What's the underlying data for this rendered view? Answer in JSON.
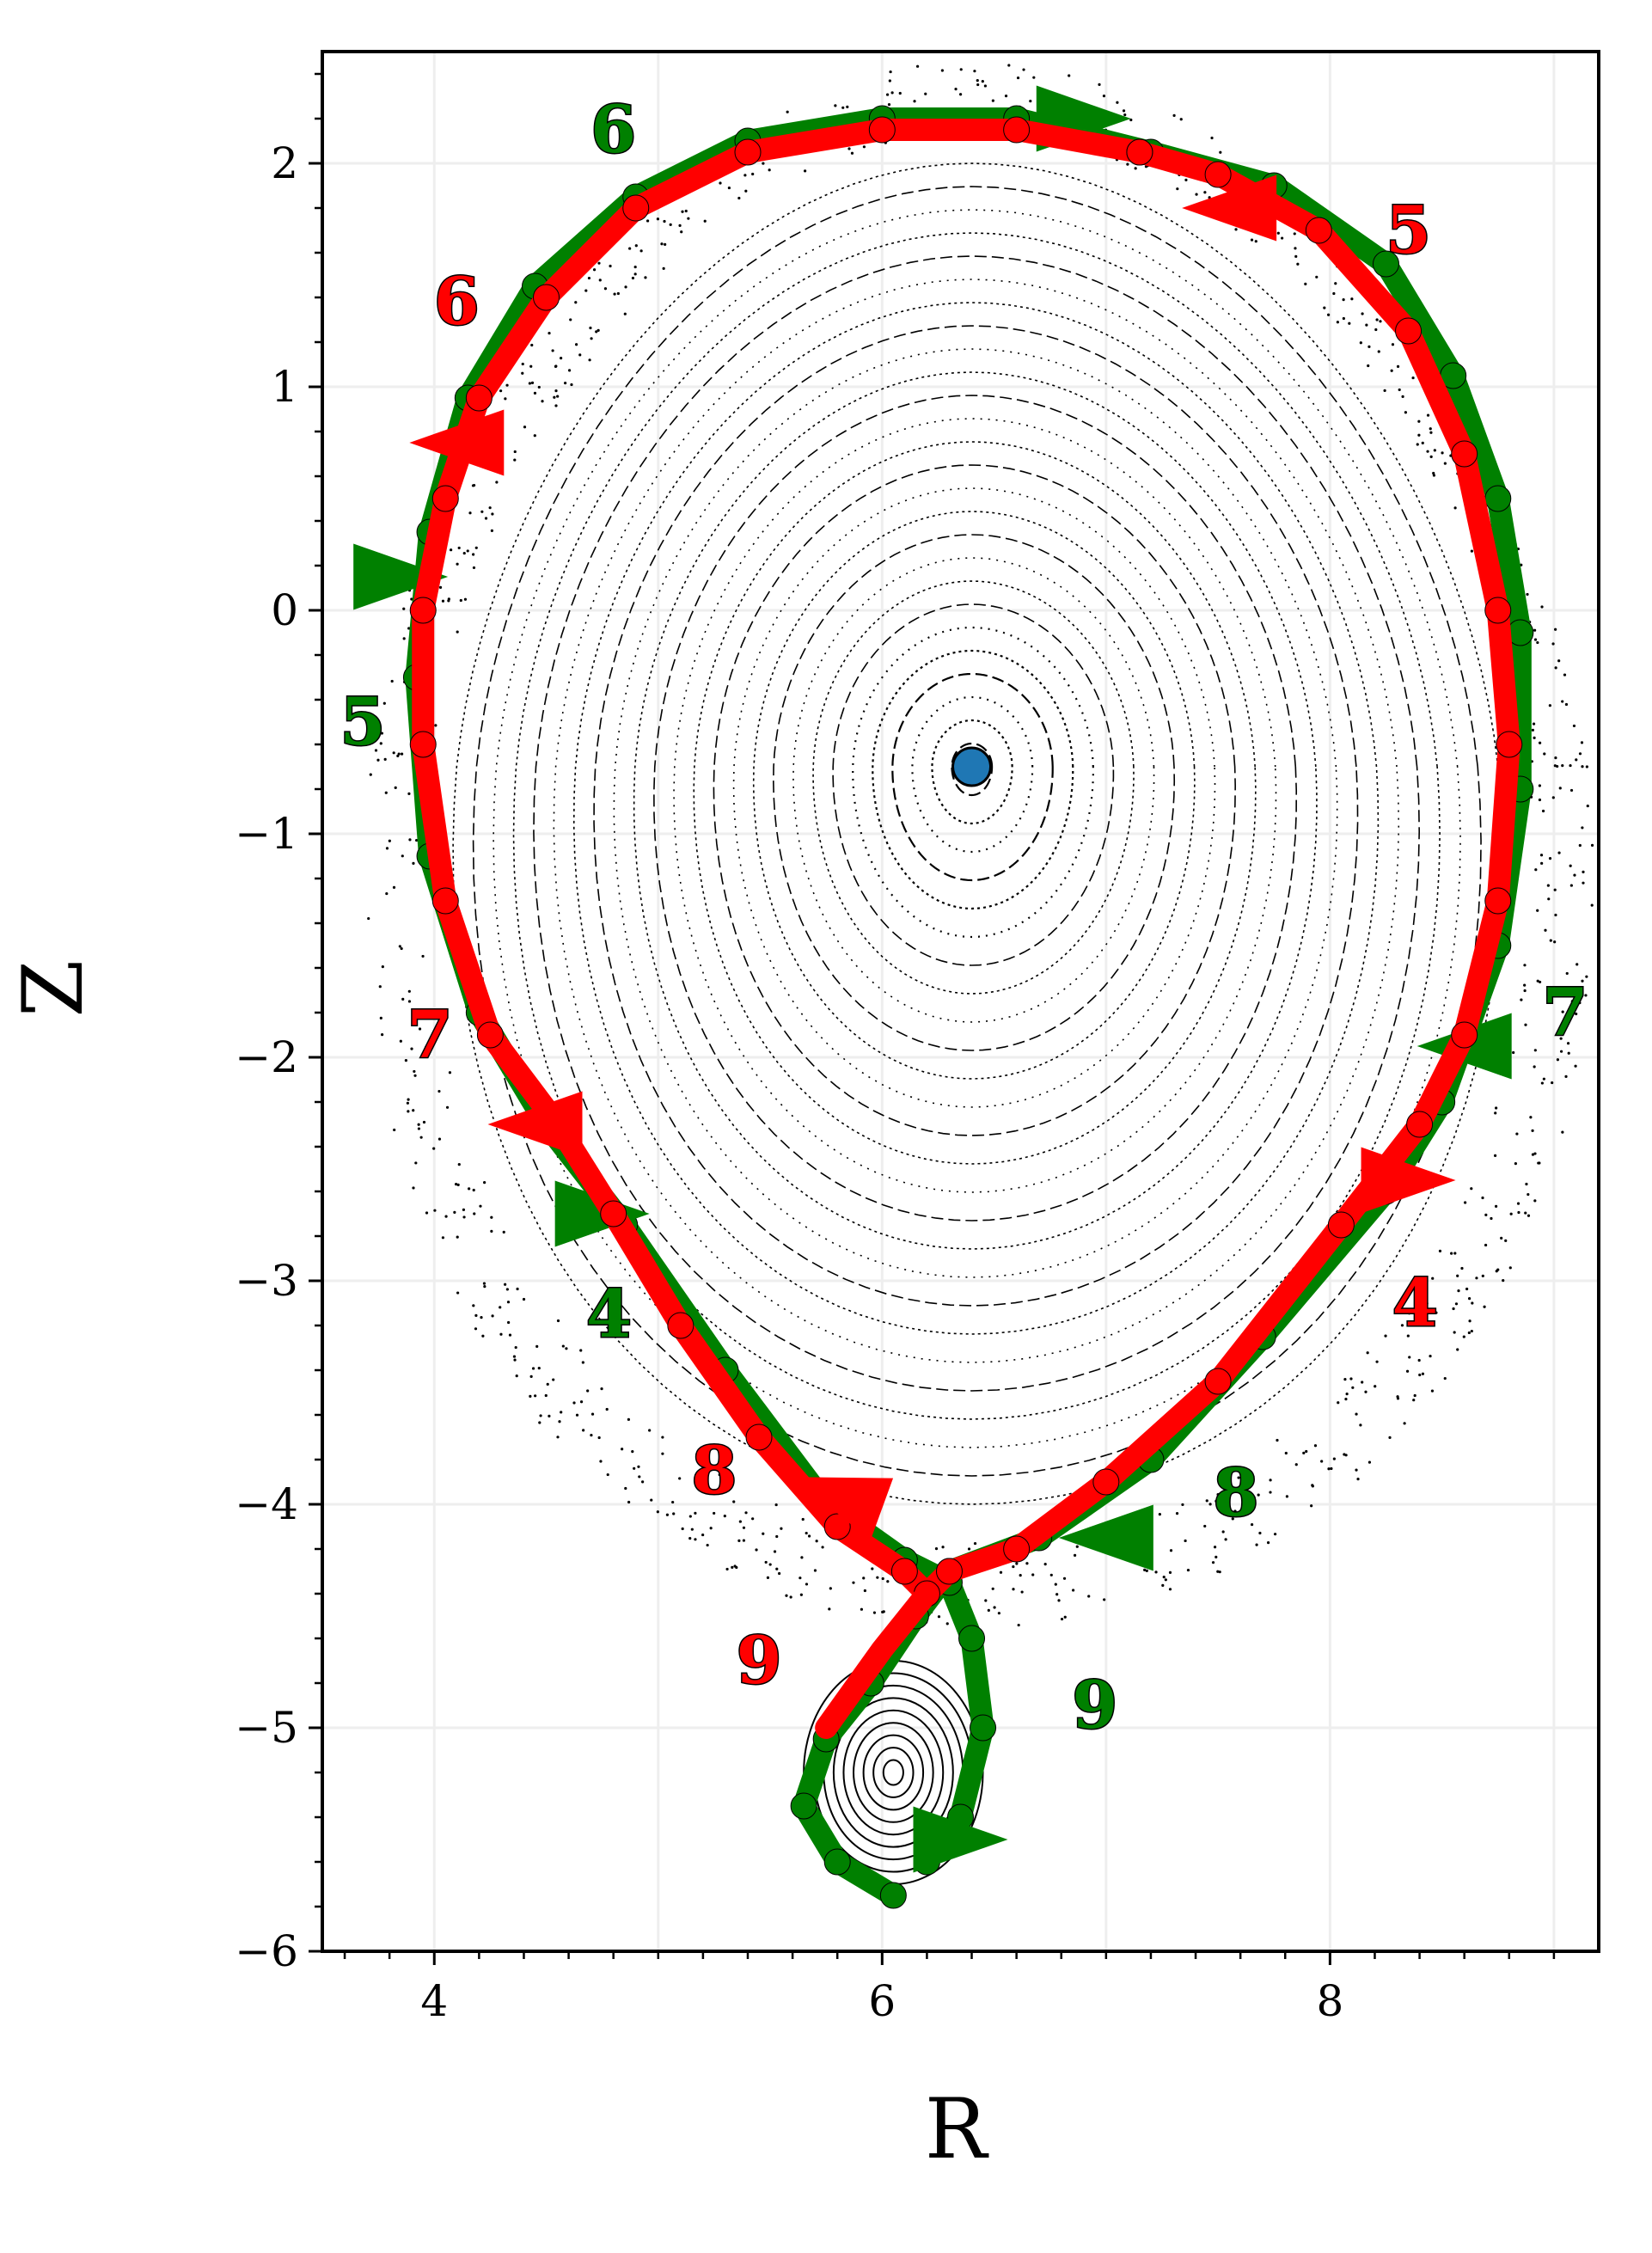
{
  "chart_data": {
    "type": "scatter",
    "title": "",
    "xlabel": "R",
    "ylabel": "Z",
    "xlim": [
      3.5,
      9.2
    ],
    "ylim": [
      -6,
      2.5
    ],
    "xticks": [
      4,
      6,
      8
    ],
    "yticks": [
      2,
      1,
      0,
      -1,
      -2,
      -3,
      -4,
      -5,
      -6
    ],
    "grid": true,
    "colors": {
      "red_path": "#ff0000",
      "green_path": "#008000",
      "magnetic_axis": "#1f77b4",
      "poincare": "#000000"
    },
    "magnetic_axis": {
      "R": 6.4,
      "Z": -0.7
    },
    "x_point": {
      "R": 6.2,
      "Z": -4.4
    },
    "red_path": {
      "points": [
        [
          7.15,
          2.05
        ],
        [
          6.6,
          2.15
        ],
        [
          6.0,
          2.15
        ],
        [
          5.4,
          2.05
        ],
        [
          4.9,
          1.8
        ],
        [
          4.5,
          1.4
        ],
        [
          4.2,
          0.95
        ],
        [
          4.05,
          0.5
        ],
        [
          3.95,
          0.0
        ],
        [
          3.95,
          -0.6
        ],
        [
          4.05,
          -1.3
        ],
        [
          4.25,
          -1.9
        ],
        [
          4.55,
          -2.3
        ],
        [
          4.8,
          -2.7
        ],
        [
          5.1,
          -3.2
        ],
        [
          5.45,
          -3.7
        ],
        [
          5.8,
          -4.1
        ],
        [
          6.1,
          -4.3
        ],
        [
          6.2,
          -4.4
        ],
        [
          6.3,
          -4.3
        ],
        [
          6.6,
          -4.2
        ],
        [
          7.0,
          -3.9
        ],
        [
          7.5,
          -3.45
        ],
        [
          8.05,
          -2.75
        ],
        [
          8.4,
          -2.3
        ],
        [
          8.6,
          -1.9
        ],
        [
          8.75,
          -1.3
        ],
        [
          8.8,
          -0.6
        ],
        [
          8.75,
          0.0
        ],
        [
          8.6,
          0.7
        ],
        [
          8.35,
          1.25
        ],
        [
          7.95,
          1.7
        ],
        [
          7.5,
          1.95
        ],
        [
          7.15,
          2.05
        ]
      ],
      "tail": [
        [
          6.2,
          -4.4
        ],
        [
          6.0,
          -4.65
        ],
        [
          5.75,
          -5.0
        ]
      ],
      "arrows": [
        {
          "R": 7.55,
          "Z": 1.8,
          "angle": 180
        },
        {
          "R": 4.1,
          "Z": 0.75,
          "angle": 180
        },
        {
          "R": 4.45,
          "Z": -2.3,
          "angle": 180
        },
        {
          "R": 5.8,
          "Z": -3.95,
          "angle": 200
        },
        {
          "R": 8.35,
          "Z": -2.55,
          "angle": 0
        }
      ],
      "labels": [
        {
          "text": "5",
          "R": 8.35,
          "Z": 1.7
        },
        {
          "text": "6",
          "R": 4.1,
          "Z": 1.38
        },
        {
          "text": "7",
          "R": 3.98,
          "Z": -1.9
        },
        {
          "text": "8",
          "R": 5.25,
          "Z": -3.85
        },
        {
          "text": "9",
          "R": 5.45,
          "Z": -4.7
        },
        {
          "text": "4",
          "R": 8.38,
          "Z": -3.1
        }
      ]
    },
    "green_path": {
      "points": [
        [
          6.05,
          -5.75
        ],
        [
          5.8,
          -5.6
        ],
        [
          5.65,
          -5.35
        ],
        [
          5.75,
          -5.05
        ],
        [
          5.95,
          -4.8
        ],
        [
          6.15,
          -4.5
        ],
        [
          6.3,
          -4.3
        ],
        [
          6.7,
          -4.15
        ],
        [
          7.2,
          -3.8
        ],
        [
          7.7,
          -3.25
        ],
        [
          8.25,
          -2.6
        ],
        [
          8.5,
          -2.2
        ],
        [
          8.75,
          -1.5
        ],
        [
          8.85,
          -0.8
        ],
        [
          8.85,
          -0.1
        ],
        [
          8.75,
          0.5
        ],
        [
          8.55,
          1.05
        ],
        [
          8.25,
          1.55
        ],
        [
          7.75,
          1.9
        ],
        [
          7.2,
          2.05
        ],
        [
          6.6,
          2.2
        ],
        [
          6.0,
          2.2
        ],
        [
          5.4,
          2.1
        ],
        [
          4.9,
          1.85
        ],
        [
          4.45,
          1.45
        ],
        [
          4.15,
          0.95
        ],
        [
          3.98,
          0.35
        ],
        [
          3.92,
          -0.3
        ],
        [
          3.98,
          -1.1
        ],
        [
          4.2,
          -1.8
        ],
        [
          4.5,
          -2.3
        ],
        [
          4.85,
          -2.75
        ],
        [
          5.3,
          -3.4
        ],
        [
          5.75,
          -4.0
        ],
        [
          6.1,
          -4.25
        ],
        [
          6.3,
          -4.35
        ],
        [
          6.4,
          -4.6
        ],
        [
          6.45,
          -5.0
        ],
        [
          6.35,
          -5.4
        ],
        [
          6.2,
          -5.6
        ]
      ],
      "arrows": [
        {
          "R": 6.9,
          "Z": 2.2,
          "angle": 0
        },
        {
          "R": 3.85,
          "Z": 0.15,
          "angle": 0
        },
        {
          "R": 4.75,
          "Z": -2.7,
          "angle": 0
        },
        {
          "R": 7.0,
          "Z": -4.15,
          "angle": 180
        },
        {
          "R": 8.6,
          "Z": -1.95,
          "angle": 180
        },
        {
          "R": 6.35,
          "Z": -5.5,
          "angle": 0
        }
      ],
      "labels": [
        {
          "text": "6",
          "R": 4.8,
          "Z": 2.15
        },
        {
          "text": "5",
          "R": 3.68,
          "Z": -0.5
        },
        {
          "text": "7",
          "R": 9.05,
          "Z": -1.8
        },
        {
          "text": "4",
          "R": 4.78,
          "Z": -3.15
        },
        {
          "text": "8",
          "R": 7.58,
          "Z": -3.95
        },
        {
          "text": "9",
          "R": 6.95,
          "Z": -4.9
        }
      ]
    }
  }
}
